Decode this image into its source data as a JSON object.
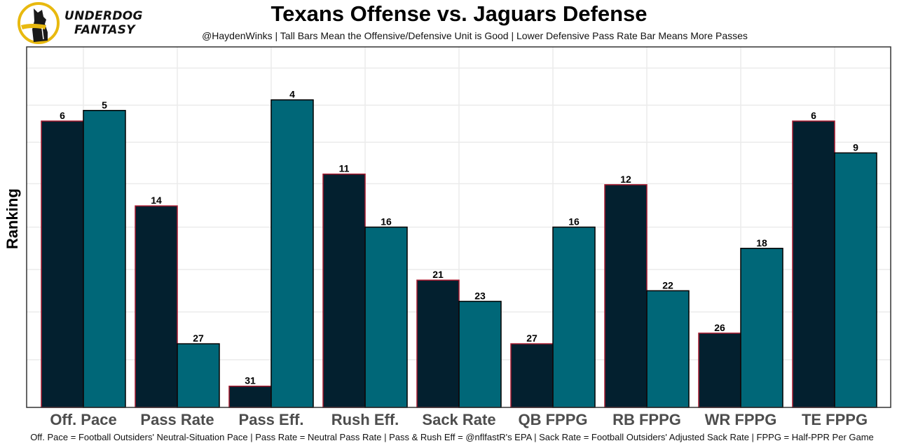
{
  "brand": {
    "line1": "UNDERDOG",
    "line2": "FANTASY",
    "logo_icon": "dog-silhouette-logo",
    "colors": {
      "ring": "#e8b90f",
      "dog": "#1a1a1a"
    }
  },
  "chart_data": {
    "type": "bar",
    "title": "Texans Offense vs. Jaguars Defense",
    "subtitle": "@HaydenWinks | Tall Bars Mean the Offensive/Defensive Unit is Good | Lower Defensive Pass Rate Bar Means More Passes",
    "xlabel": "",
    "ylabel": "Ranking",
    "caption": "Off. Pace = Football Outsiders' Neutral-Situation Pace | Pass Rate = Neutral Pass Rate | Pass & Rush Eff = @nflfastR's EPA | Sack Rate = Football Outsiders' Adjusted Sack Rate | FPPG = Half-PPR Per Game",
    "categories": [
      "Off. Pace",
      "Pass Rate",
      "Pass Eff.",
      "Rush Eff.",
      "Sack Rate",
      "QB FPPG",
      "RB FPPG",
      "WR FPPG",
      "TE FPPG"
    ],
    "series": [
      {
        "name": "Texans Offense",
        "color": "#03202f",
        "outline": "#a6192e",
        "values": [
          6,
          14,
          31,
          11,
          21,
          27,
          12,
          26,
          6
        ]
      },
      {
        "name": "Jaguars Defense",
        "color": "#006778",
        "outline": "#000000",
        "values": [
          5,
          27,
          4,
          16,
          23,
          16,
          22,
          18,
          9
        ]
      }
    ],
    "value_transform": "bar height = 33 - rank (rank 1 tallest)",
    "rank_range": [
      1,
      32
    ],
    "grid": true,
    "legend": "none",
    "y_tick_labels": "hidden"
  }
}
